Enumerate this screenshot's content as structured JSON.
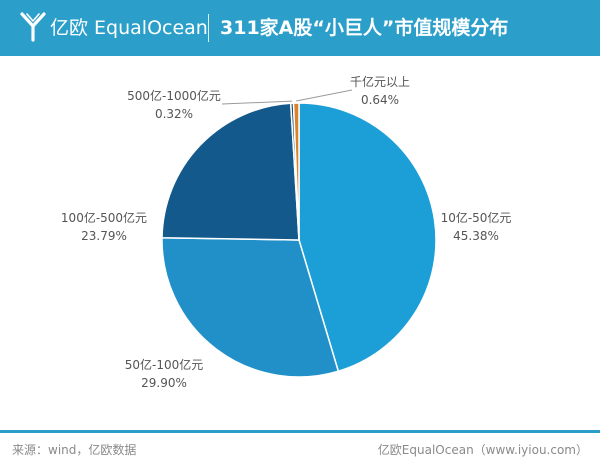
{
  "header": {
    "brand": "亿欧 EqualOcean",
    "title": "311家A股“小巨人”市值规模分布",
    "logo_icon": "equalocean-logo-icon"
  },
  "colors": {
    "header_bg": "#2b9fc9",
    "slice_1": "#1c9fd6",
    "slice_2": "#2190c9",
    "slice_3": "#14598c",
    "slice_4": "#1a4b7a",
    "slice_5": "#d8832b",
    "label_text": "#555555"
  },
  "chart_data": {
    "type": "pie",
    "title": "311家A股“小巨人”市值规模分布",
    "slices": [
      {
        "label": "10亿-50亿元",
        "value": 45.38,
        "value_label": "45.38%"
      },
      {
        "label": "50亿-100亿元",
        "value": 29.9,
        "value_label": "29.90%"
      },
      {
        "label": "100亿-500亿元",
        "value": 23.79,
        "value_label": "23.79%"
      },
      {
        "label": "500亿-1000亿元",
        "value": 0.32,
        "value_label": "0.32%"
      },
      {
        "label": "千亿元以上",
        "value": 0.64,
        "value_label": "0.64%"
      }
    ],
    "start_angle": "top",
    "direction": "clockwise",
    "legend": "none"
  },
  "footer": {
    "source": "来源：wind，亿欧数据",
    "credit": "亿欧EqualOcean（www.iyiou.com）"
  }
}
